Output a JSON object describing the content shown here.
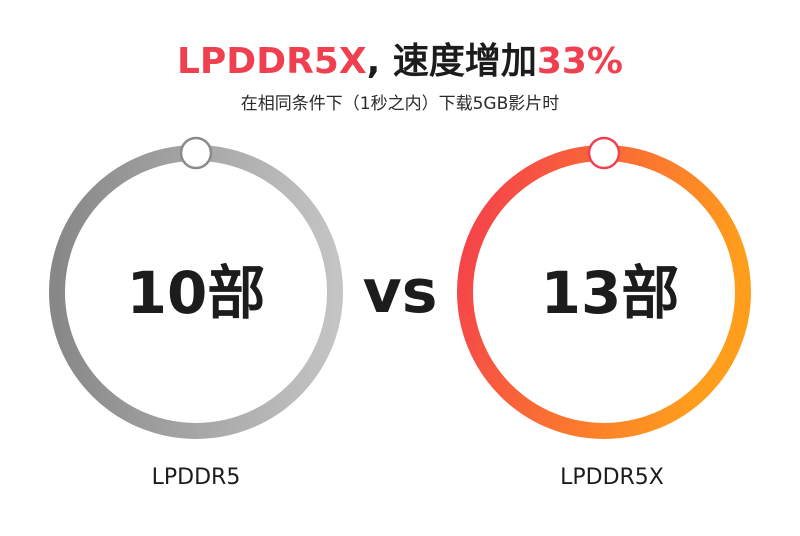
{
  "headline": {
    "part1": "LPDDR5X",
    "part2": ", 速度增加",
    "part3": "33%"
  },
  "subtitle": "在相同条件下（1秒之内）下载5GB影片时",
  "comparison": {
    "left": {
      "value": "10部",
      "label": "LPDDR5"
    },
    "vs": "vs",
    "right": {
      "value": "13部",
      "label": "LPDDR5X"
    }
  },
  "colors": {
    "accent": "#f0404f",
    "left_ring_start": "#888888",
    "left_ring_end": "#c4c4c4",
    "right_ring_start": "#f43b4e",
    "right_ring_end": "#ff9d1c",
    "text": "#1c1c1c"
  }
}
